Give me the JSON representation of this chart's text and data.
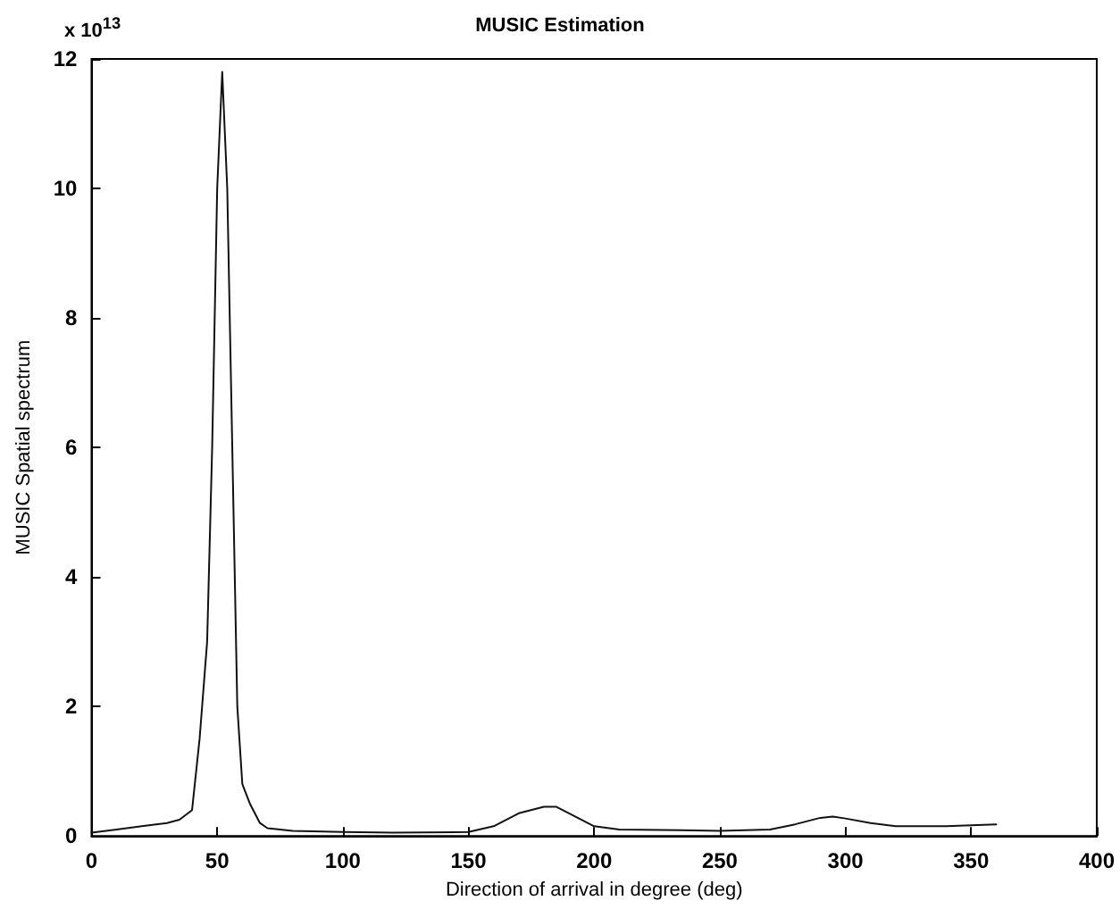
{
  "chart_data": {
    "type": "line",
    "title": "MUSIC Estimation",
    "xlabel": "Direction of arrival in degree (deg)",
    "ylabel": "MUSIC Spatial spectrum",
    "annotations": [
      "x 10$^{13}$"
    ],
    "x": [
      0,
      10,
      20,
      30,
      35,
      40,
      43,
      46,
      48,
      50,
      52,
      54,
      56,
      58,
      60,
      63,
      67,
      70,
      80,
      100,
      120,
      150,
      160,
      170,
      180,
      185,
      190,
      200,
      210,
      250,
      270,
      280,
      290,
      295,
      300,
      310,
      320,
      340,
      360
    ],
    "series": [
      {
        "color": "#111111",
        "values": [
          0.05,
          0.1,
          0.15,
          0.2,
          0.25,
          0.4,
          1.5,
          3,
          6,
          10,
          11.8,
          10,
          6,
          2,
          0.8,
          0.5,
          0.2,
          0.12,
          0.08,
          0.06,
          0.05,
          0.06,
          0.15,
          0.35,
          0.45,
          0.45,
          0.35,
          0.15,
          0.1,
          0.08,
          0.1,
          0.18,
          0.28,
          0.3,
          0.27,
          0.2,
          0.15,
          0.15,
          0.18
        ]
      }
    ],
    "xlim": [
      0,
      400
    ],
    "xticks": [
      0,
      50,
      100,
      150,
      200,
      250,
      300,
      350,
      400
    ],
    "ylim": [
      0,
      12
    ],
    "yticks": [
      0,
      2,
      4,
      6,
      8,
      10,
      12
    ],
    "grid": false,
    "marker": "none",
    "line_style": "solid"
  }
}
